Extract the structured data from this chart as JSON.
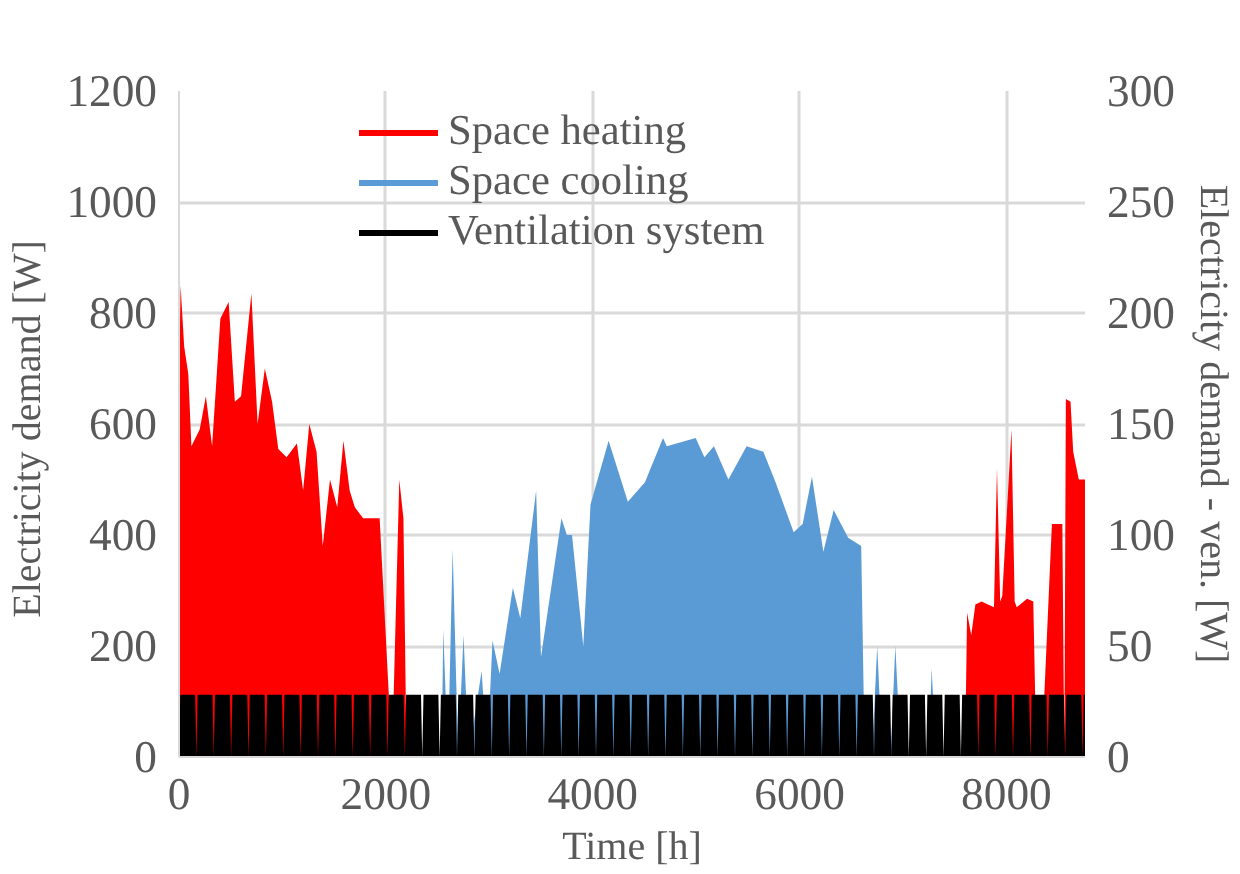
{
  "chart_data": {
    "type": "area",
    "xlabel": "Time [h]",
    "ylabel": "Electricity  demand [W]",
    "y2label": "Electricity demand - ven. [W]",
    "xlim": [
      0,
      8760
    ],
    "xticks": [
      0,
      2000,
      4000,
      6000,
      8000
    ],
    "ylim": [
      0,
      1200
    ],
    "yticks": [
      0,
      200,
      400,
      600,
      800,
      1000,
      1200
    ],
    "y2lim": [
      0,
      300
    ],
    "y2ticks": [
      0,
      50,
      100,
      150,
      200,
      250,
      300
    ],
    "grid": true,
    "legend": "top",
    "series": [
      {
        "name": "Space heating",
        "color": "#ff0000",
        "x": [
          0,
          15,
          50,
          90,
          120,
          200,
          260,
          320,
          400,
          480,
          540,
          600,
          700,
          760,
          830,
          900,
          960,
          1040,
          1140,
          1200,
          1260,
          1330,
          1390,
          1460,
          1530,
          1590,
          1650,
          1700,
          1780,
          1850,
          1940,
          2060,
          2130,
          2170,
          2200,
          7600,
          7620,
          7660,
          7700,
          7760,
          7880,
          7909,
          7940,
          7960,
          8049,
          8080,
          8100,
          8200,
          8260,
          8290,
          8340,
          8440,
          8541,
          8560,
          8575,
          8620,
          8646,
          8700,
          8760
        ],
        "values": [
          650,
          850,
          740,
          690,
          560,
          590,
          650,
          560,
          790,
          820,
          640,
          650,
          835,
          600,
          700,
          640,
          555,
          540,
          565,
          480,
          600,
          550,
          380,
          500,
          450,
          570,
          480,
          450,
          430,
          430,
          430,
          0,
          500,
          430,
          0,
          0,
          260,
          220,
          275,
          280,
          270,
          520,
          280,
          290,
          590,
          280,
          270,
          285,
          280,
          0,
          0,
          420,
          420,
          0,
          645,
          640,
          550,
          500,
          500
        ]
      },
      {
        "name": "Space cooling",
        "color": "#5b9bd5",
        "x": [
          2540,
          2555,
          2600,
          2646,
          2700,
          2751,
          2800,
          2926,
          2980,
          3031,
          3100,
          3228,
          3300,
          3453,
          3500,
          3698,
          3750,
          3800,
          3909,
          3979,
          4154,
          4340,
          4505,
          4680,
          4716,
          4996,
          5080,
          5172,
          5312,
          5488,
          5650,
          5768,
          5943,
          6030,
          6120,
          6230,
          6330,
          6470,
          6596,
          6630,
          6700,
          6751,
          6800,
          6880,
          6926,
          6980,
          7250,
          7277,
          7320
        ],
        "values": [
          0,
          230,
          0,
          375,
          0,
          220,
          0,
          155,
          0,
          210,
          150,
          305,
          250,
          480,
          180,
          430,
          400,
          400,
          200,
          455,
          570,
          460,
          495,
          575,
          560,
          575,
          540,
          560,
          500,
          560,
          550,
          495,
          405,
          420,
          505,
          370,
          445,
          395,
          380,
          0,
          0,
          200,
          0,
          0,
          200,
          0,
          0,
          160,
          0
        ]
      },
      {
        "name": "Ventilation system",
        "color": "#000000",
        "axis": "y2",
        "x": [
          0,
          12,
          156,
          168,
          180,
          324,
          336,
          348,
          492,
          504,
          516,
          660,
          672,
          684,
          828,
          840,
          852,
          996,
          1008,
          1020,
          1164,
          1176,
          1188,
          1332,
          1344,
          1356,
          1500,
          1512,
          1524,
          1668,
          1680,
          1692,
          1836,
          1848,
          1860,
          2004,
          2016,
          2028,
          2172,
          2184,
          2196,
          2340,
          2352,
          2364,
          2508,
          2520,
          2532,
          2676,
          2688,
          2700,
          2844,
          2856,
          2868,
          3012,
          3024,
          3036,
          3180,
          3192,
          3204,
          3348,
          3360,
          3372,
          3516,
          3528,
          3540,
          3684,
          3696,
          3708,
          3852,
          3864,
          3876,
          4020,
          4032,
          4044,
          4188,
          4200,
          4212,
          4356,
          4368,
          4380,
          4524,
          4536,
          4548,
          4692,
          4704,
          4716,
          4860,
          4872,
          4884,
          5028,
          5040,
          5052,
          5196,
          5208,
          5220,
          5364,
          5376,
          5388,
          5532,
          5544,
          5556,
          5700,
          5712,
          5724,
          5868,
          5880,
          5892,
          6036,
          6048,
          6060,
          6204,
          6216,
          6228,
          6372,
          6384,
          6396,
          6540,
          6552,
          6564,
          6708,
          6720,
          6732,
          6876,
          6888,
          6900,
          7044,
          7056,
          7068,
          7212,
          7224,
          7236,
          7380,
          7392,
          7404,
          7548,
          7560,
          7572,
          7716,
          7728,
          7740,
          7884,
          7896,
          7908,
          8052,
          8064,
          8076,
          8220,
          8232,
          8244,
          8388,
          8400,
          8412,
          8556,
          8568,
          8580,
          8724,
          8736,
          8748,
          8760
        ],
        "values": [
          0,
          28,
          28,
          0,
          28,
          28,
          0,
          28,
          28,
          0,
          28,
          28,
          0,
          28,
          28,
          0,
          28,
          28,
          0,
          28,
          28,
          0,
          28,
          28,
          0,
          28,
          28,
          0,
          28,
          28,
          0,
          28,
          28,
          0,
          28,
          28,
          0,
          28,
          28,
          0,
          28,
          28,
          0,
          28,
          28,
          0,
          28,
          28,
          0,
          28,
          28,
          0,
          28,
          28,
          0,
          28,
          28,
          0,
          28,
          28,
          0,
          28,
          28,
          0,
          28,
          28,
          0,
          28,
          28,
          0,
          28,
          28,
          0,
          28,
          28,
          0,
          28,
          28,
          0,
          28,
          28,
          0,
          28,
          28,
          0,
          28,
          28,
          0,
          28,
          28,
          0,
          28,
          28,
          0,
          28,
          28,
          0,
          28,
          28,
          0,
          28,
          28,
          0,
          28,
          28,
          0,
          28,
          28,
          0,
          28,
          28,
          0,
          28,
          28,
          0,
          28,
          28,
          0,
          28,
          28,
          0,
          28,
          28,
          0,
          28,
          28,
          0,
          28,
          28,
          0,
          28,
          28,
          0,
          28,
          28,
          0,
          28,
          28,
          0,
          28,
          28,
          0,
          28,
          28,
          0,
          28,
          28,
          0,
          28,
          28,
          0,
          28,
          28,
          0,
          28,
          28,
          0,
          28,
          28
        ]
      }
    ]
  }
}
